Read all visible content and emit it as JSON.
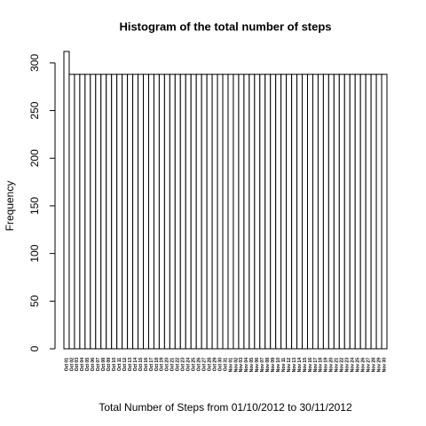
{
  "chart_data": {
    "type": "bar",
    "title": "Histogram of the total number of steps",
    "x_label": "Total Number of Steps from 01/10/2012 to 30/11/2012",
    "y_label": "Frequency",
    "categories": [
      "Oct 01",
      "Oct 02",
      "Oct 03",
      "Oct 04",
      "Oct 05",
      "Oct 06",
      "Oct 07",
      "Oct 08",
      "Oct 09",
      "Oct 10",
      "Oct 11",
      "Oct 12",
      "Oct 13",
      "Oct 14",
      "Oct 15",
      "Oct 16",
      "Oct 17",
      "Oct 18",
      "Oct 19",
      "Oct 20",
      "Oct 21",
      "Oct 22",
      "Oct 23",
      "Oct 24",
      "Oct 25",
      "Oct 26",
      "Oct 27",
      "Oct 28",
      "Oct 29",
      "Oct 30",
      "Oct 31",
      "Nov 01",
      "Nov 02",
      "Nov 03",
      "Nov 04",
      "Nov 05",
      "Nov 06",
      "Nov 07",
      "Nov 08",
      "Nov 09",
      "Nov 10",
      "Nov 11",
      "Nov 12",
      "Nov 13",
      "Nov 14",
      "Nov 15",
      "Nov 16",
      "Nov 17",
      "Nov 18",
      "Nov 19",
      "Nov 20",
      "Nov 21",
      "Nov 22",
      "Nov 23",
      "Nov 24",
      "Nov 25",
      "Nov 26",
      "Nov 27",
      "Nov 28",
      "Nov 29",
      "Nov 30"
    ],
    "values": [
      312,
      288,
      288,
      288,
      288,
      288,
      288,
      288,
      288,
      288,
      288,
      288,
      288,
      288,
      288,
      288,
      288,
      288,
      288,
      288,
      288,
      288,
      288,
      288,
      288,
      288,
      288,
      288,
      288,
      288,
      288,
      288,
      288,
      288,
      288,
      288,
      288,
      288,
      288,
      288,
      288,
      288,
      288,
      288,
      288,
      288,
      288,
      288,
      288,
      288,
      288,
      288,
      288,
      288,
      288,
      288,
      288,
      288,
      288,
      288,
      288
    ],
    "color": "#ffffff",
    "ylim": [
      0,
      312
    ],
    "yticks": [
      0,
      50,
      100,
      150,
      200,
      250,
      300
    ]
  }
}
